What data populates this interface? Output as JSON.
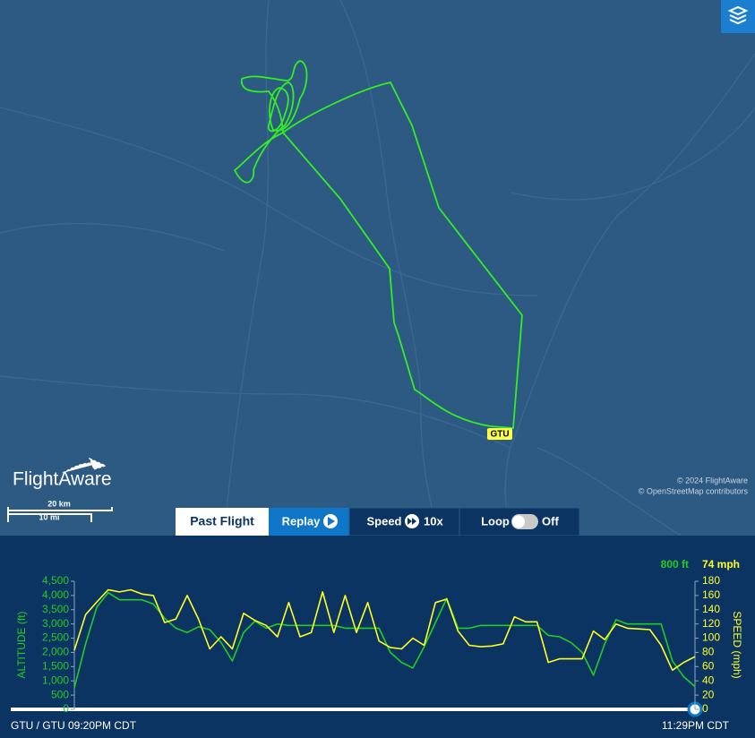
{
  "map": {
    "airport_label": "GTU",
    "logo": "FlightAware",
    "scale_km": "20 km",
    "scale_mi": "10 mi",
    "copyright": "© 2024 FlightAware",
    "osm": "© OpenStreetMap contributors"
  },
  "controls": {
    "past_flight": "Past Flight",
    "replay": "Replay",
    "speed_label": "Speed",
    "speed_value": "10x",
    "loop_label": "Loop",
    "loop_value": "Off"
  },
  "chart_data": {
    "type": "line",
    "ylabel": "ALTITUDE (ft)",
    "y2label": "SPEED (mph)",
    "ylim": [
      0,
      4500
    ],
    "yticks": [
      0,
      500,
      {
        "value": 1000,
        "label": "1,000"
      },
      {
        "value": 1500,
        "label": "1,500"
      },
      {
        "value": 2000,
        "label": "2,000"
      },
      {
        "value": 2500,
        "label": "2,500"
      },
      {
        "value": 3000,
        "label": "3,000"
      },
      {
        "value": 3500,
        "label": "3,500"
      },
      {
        "value": 4000,
        "label": "4,000"
      },
      {
        "value": 4500,
        "label": "4,500"
      }
    ],
    "y2lim": [
      0,
      180
    ],
    "y2ticks": [
      0,
      20,
      40,
      60,
      80,
      100,
      120,
      140,
      160,
      180
    ],
    "series": [
      {
        "color": "#22cc22",
        "readout": "800 ft",
        "values": [
          750,
          2300,
          3600,
          4100,
          3850,
          3850,
          3850,
          3700,
          3200,
          2850,
          2700,
          2900,
          2800,
          2350,
          1700,
          2700,
          3100,
          2850,
          3000,
          2950,
          2950,
          2950,
          2950,
          2950,
          2850,
          2850,
          2850,
          2850,
          2000,
          1650,
          1450,
          2200,
          3050,
          3900,
          2850,
          2850,
          2950,
          2950,
          2950,
          2950,
          2950,
          2950,
          2600,
          2550,
          2350,
          2000,
          1200,
          2300,
          3150,
          3000,
          3000,
          3000,
          3000,
          1700,
          1150,
          800
        ]
      },
      {
        "color": "#ffff22",
        "axis": "y2",
        "readout": "74 mph",
        "values": [
          83,
          133,
          151,
          168,
          165,
          168,
          162,
          160,
          122,
          127,
          160,
          127,
          85,
          102,
          85,
          135,
          125,
          118,
          102,
          150,
          102,
          108,
          165,
          108,
          160,
          108,
          150,
          96,
          87,
          85,
          100,
          90,
          150,
          155,
          110,
          90,
          88,
          89,
          92,
          130,
          123,
          123,
          66,
          71,
          71,
          71,
          110,
          98,
          120,
          114,
          113,
          112,
          90,
          55,
          66,
          74
        ]
      }
    ],
    "start_label": "GTU / GTU 09:20PM CDT",
    "end_label": "11:29PM CDT"
  }
}
